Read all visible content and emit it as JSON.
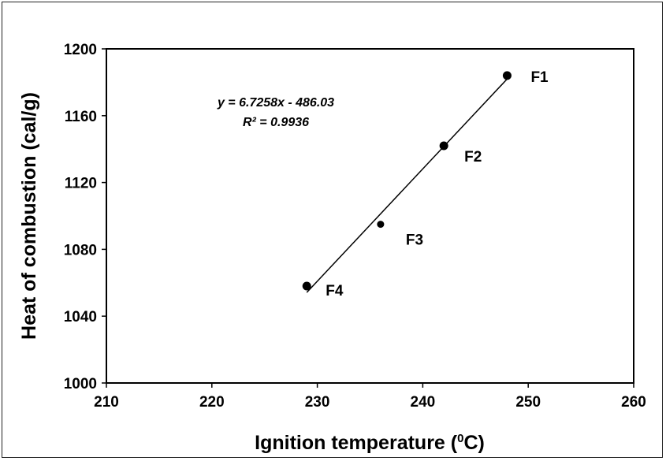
{
  "chart_data": {
    "type": "scatter",
    "xlabel": "Ignition temperature (",
    "xlabel_sup": "0",
    "xlabel_tail": "C)",
    "ylabel": "Heat of combustion (cal/g)",
    "xlim": [
      210,
      260
    ],
    "ylim": [
      1000,
      1200
    ],
    "x_ticks": [
      "210",
      "220",
      "230",
      "240",
      "250",
      "260"
    ],
    "y_ticks": [
      "1000",
      "1040",
      "1080",
      "1120",
      "1160",
      "1200"
    ],
    "grid": false,
    "series": [
      {
        "points": [
          {
            "label": "F1",
            "x": 248,
            "y": 1184
          },
          {
            "label": "F2",
            "x": 242,
            "y": 1142
          },
          {
            "label": "F3",
            "x": 236,
            "y": 1095
          },
          {
            "label": "F4",
            "x": 229,
            "y": 1058
          }
        ],
        "marker_color": "#000000"
      }
    ],
    "trendline": {
      "slope": 6.7258,
      "intercept": -486.03,
      "x_range": [
        229,
        248
      ],
      "equation": "y = 6.7258x - 486.03",
      "r_squared": "R² = 0.9936"
    }
  }
}
